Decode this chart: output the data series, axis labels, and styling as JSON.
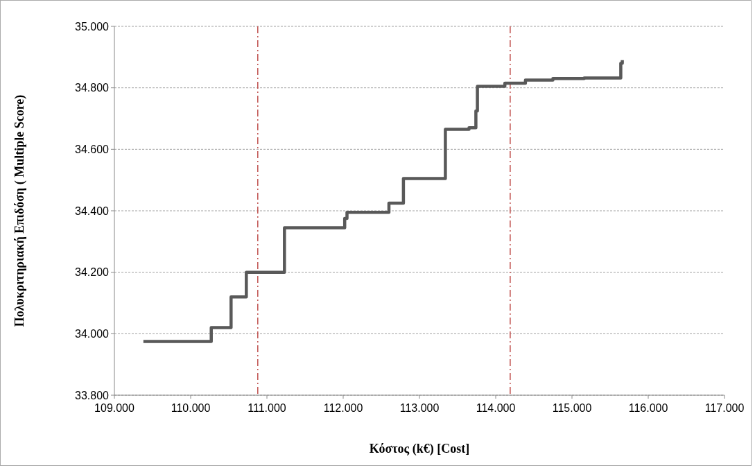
{
  "chart_data": {
    "type": "step",
    "xlabel": "Κόστος (k€) [Cost]",
    "ylabel": "Πολυκριτηριακή Επιδόση ( Multiple Score)",
    "x": [
      109.38,
      110.27,
      110.53,
      110.73,
      111.23,
      112.02,
      112.05,
      112.6,
      112.79,
      113.34,
      113.65,
      113.74,
      113.76,
      114.12,
      114.39,
      114.75,
      115.16,
      115.64,
      115.66
    ],
    "series": [
      {
        "color": "#595959",
        "values": [
          33.975,
          34.02,
          34.12,
          34.2,
          34.345,
          34.375,
          34.395,
          34.425,
          34.505,
          34.665,
          34.67,
          34.725,
          34.805,
          34.815,
          34.825,
          34.83,
          34.832,
          34.88,
          34.89
        ]
      }
    ],
    "xlim": [
      109,
      117
    ],
    "ylim": [
      33.8,
      35
    ],
    "xticks": [
      {
        "value": 109,
        "label": "109.000"
      },
      {
        "value": 110,
        "label": "110.000"
      },
      {
        "value": 111,
        "label": "111.000"
      },
      {
        "value": 112,
        "label": "112.000"
      },
      {
        "value": 113,
        "label": "113.000"
      },
      {
        "value": 114,
        "label": "114.000"
      },
      {
        "value": 115,
        "label": "115.000"
      },
      {
        "value": 116,
        "label": "116.000"
      },
      {
        "value": 117,
        "label": "117.000"
      }
    ],
    "yticks": [
      {
        "value": 33.8,
        "label": "33.800"
      },
      {
        "value": 34,
        "label": "34.000"
      },
      {
        "value": 34.2,
        "label": "34.200"
      },
      {
        "value": 34.4,
        "label": "34.400"
      },
      {
        "value": 34.6,
        "label": "34.600"
      },
      {
        "value": 34.8,
        "label": "34.800"
      },
      {
        "value": 35,
        "label": "35.000"
      }
    ],
    "grid": "y",
    "ref_lines": [
      {
        "axis": "x",
        "value": 110.88,
        "color": "#c0504d",
        "line_style": "dashed"
      },
      {
        "axis": "x",
        "value": 114.19,
        "color": "#c0504d",
        "line_style": "dashed"
      }
    ]
  }
}
